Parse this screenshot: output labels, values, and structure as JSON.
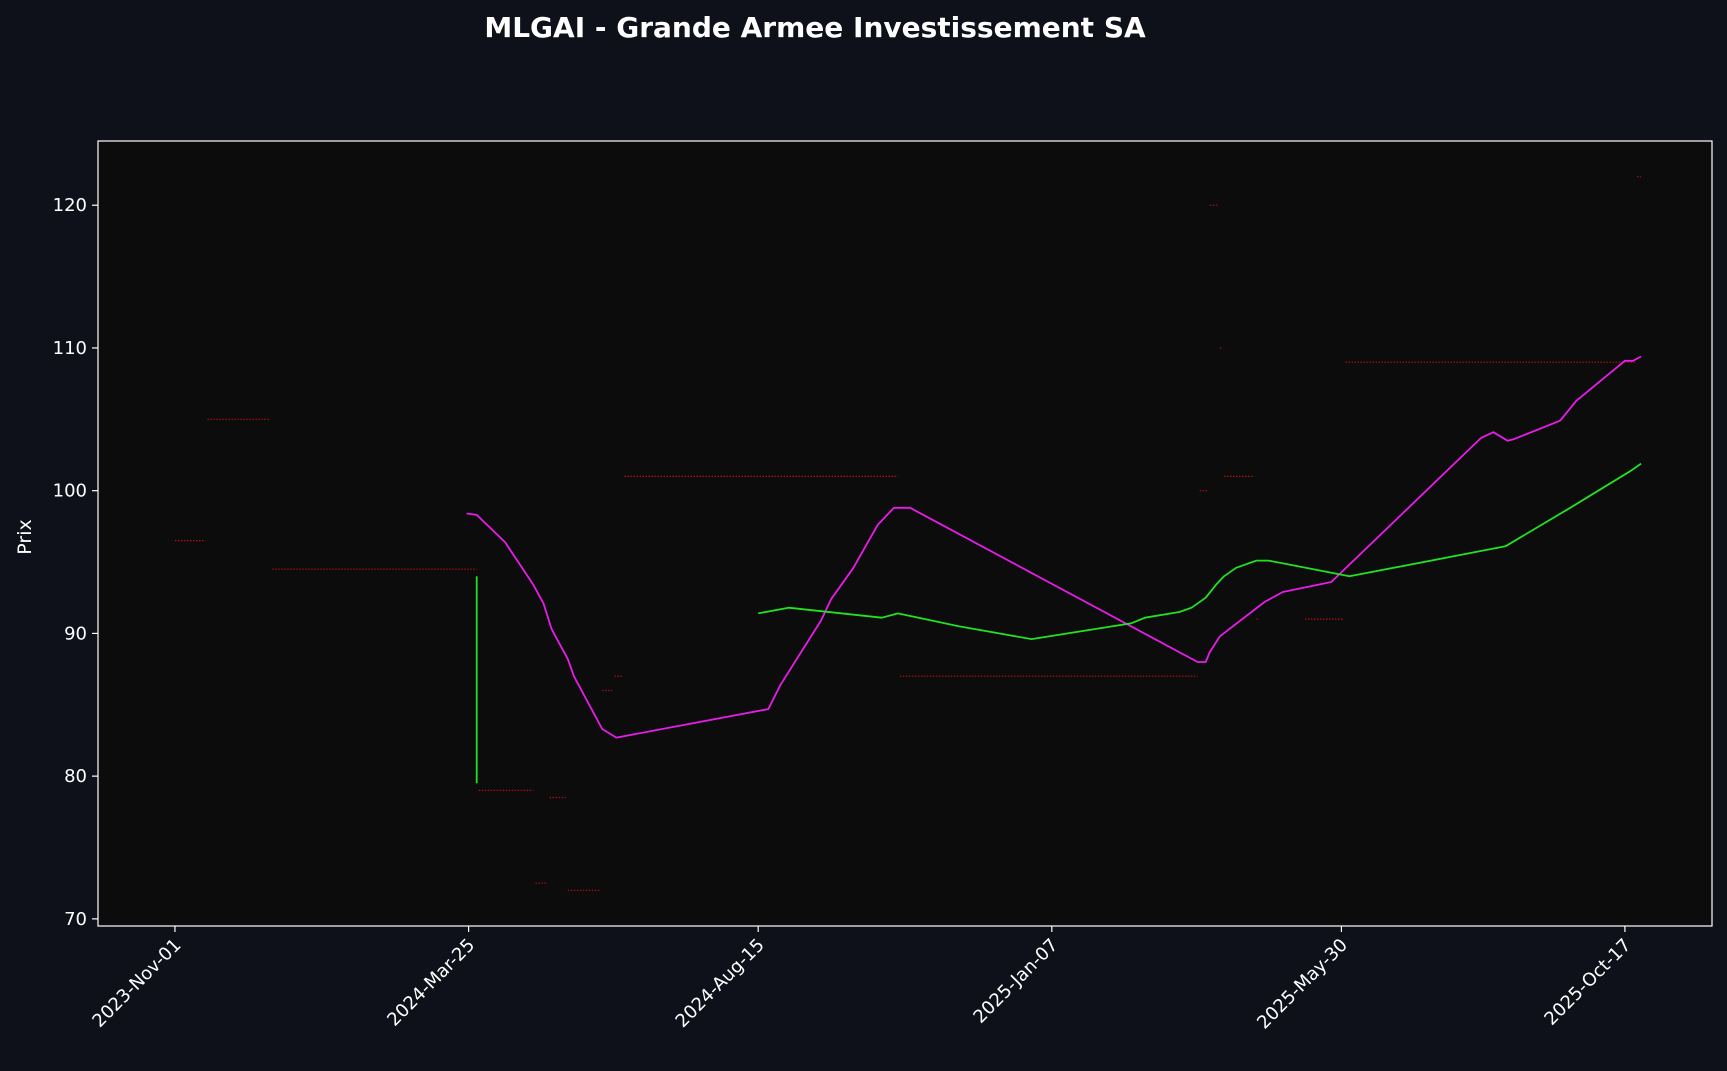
{
  "chart_data": {
    "type": "line",
    "title": "MLGAI - Grande Armee Investissement SA",
    "xlabel": "",
    "ylabel": "Prix",
    "x_ticks": [
      "2023-Nov-01",
      "2024-Mar-25",
      "2024-Aug-15",
      "2025-Jan-07",
      "2025-May-30",
      "2025-Oct-17"
    ],
    "y_ticks": [
      70,
      80,
      90,
      100,
      110,
      120
    ],
    "xlim": [
      "2023-Sep-24",
      "2025-Nov-29"
    ],
    "ylim": [
      69.5,
      124.5
    ],
    "grid": false,
    "legend": "none",
    "colors": {
      "background": "#0e111a",
      "plot_background": "#0c0c0c",
      "text": "#ffffff",
      "price_steps": "#b01010",
      "magenta_series": "#e81ce8",
      "green_series": "#22e022"
    },
    "series": [
      {
        "style": "step",
        "color": "#b01010",
        "points": [
          [
            "2023-Nov-01",
            96.5
          ],
          [
            "2023-Nov-16",
            96.5
          ],
          [
            "2023-Nov-17",
            105
          ],
          [
            "2023-Dec-18",
            105
          ],
          [
            "2023-Dec-19",
            94.5
          ],
          [
            "2024-Mar-29",
            94.5
          ],
          [
            "2024-Mar-30",
            79
          ],
          [
            "2024-Apr-26",
            79
          ],
          [
            "2024-Apr-27",
            72.5
          ],
          [
            "2024-May-03",
            72.5
          ],
          [
            "2024-May-04",
            78.5
          ],
          [
            "2024-May-12",
            78.5
          ],
          [
            "2024-May-13",
            72
          ],
          [
            "2024-May-29",
            72
          ],
          [
            "2024-May-30",
            86
          ],
          [
            "2024-Jun-04",
            86
          ],
          [
            "2024-Jun-05",
            87
          ],
          [
            "2024-Jun-09",
            87
          ],
          [
            "2024-Jun-10",
            101
          ],
          [
            "2024-Oct-23",
            101
          ],
          [
            "2024-Oct-24",
            87
          ],
          [
            "2025-Mar-20",
            87
          ],
          [
            "2025-Mar-21",
            100
          ],
          [
            "2025-Mar-25",
            100
          ],
          [
            "2025-Mar-26",
            120
          ],
          [
            "2025-Mar-30",
            120
          ],
          [
            "2025-Mar-31",
            110
          ],
          [
            "2025-Apr-01",
            110
          ],
          [
            "2025-Apr-02",
            101
          ],
          [
            "2025-Apr-17",
            101
          ],
          [
            "2025-Apr-18",
            91
          ],
          [
            "2025-Apr-19",
            91
          ],
          [
            "2025-May-12",
            91
          ],
          [
            "2025-May-31",
            91
          ],
          [
            "2025-Jun-01",
            109
          ],
          [
            "2025-Oct-22",
            109
          ],
          [
            "2025-Oct-23",
            122
          ],
          [
            "2025-Oct-25",
            122
          ]
        ]
      },
      {
        "style": "line",
        "color": "#e81ce8",
        "points": [
          [
            "2024-Mar-24",
            98.4
          ],
          [
            "2024-Mar-29",
            98.3
          ],
          [
            "2024-Apr-12",
            96.4
          ],
          [
            "2024-Apr-26",
            93.4
          ],
          [
            "2024-May-01",
            92.1
          ],
          [
            "2024-May-05",
            90.3
          ],
          [
            "2024-May-13",
            88.2
          ],
          [
            "2024-May-16",
            87
          ],
          [
            "2024-May-30",
            83.3
          ],
          [
            "2024-Jun-06",
            82.7
          ],
          [
            "2024-Aug-20",
            84.7
          ],
          [
            "2024-Aug-26",
            86.4
          ],
          [
            "2024-Sep-15",
            90.9
          ],
          [
            "2024-Sep-20",
            92.4
          ],
          [
            "2024-Oct-01",
            94.6
          ],
          [
            "2024-Oct-09",
            96.6
          ],
          [
            "2024-Oct-13",
            97.6
          ],
          [
            "2024-Oct-21",
            98.8
          ],
          [
            "2024-Oct-29",
            98.8
          ],
          [
            "2025-Mar-20",
            88
          ],
          [
            "2025-Mar-24",
            88
          ],
          [
            "2025-Mar-26",
            88.7
          ],
          [
            "2025-Mar-31",
            89.8
          ],
          [
            "2025-Apr-22",
            92.2
          ],
          [
            "2025-May-01",
            92.9
          ],
          [
            "2025-May-25",
            93.6
          ],
          [
            "2025-Aug-07",
            103.7
          ],
          [
            "2025-Aug-13",
            104.1
          ],
          [
            "2025-Aug-20",
            103.5
          ],
          [
            "2025-Aug-23",
            103.6
          ],
          [
            "2025-Sep-15",
            104.9
          ],
          [
            "2025-Sep-23",
            106.3
          ],
          [
            "2025-Oct-17",
            109.1
          ],
          [
            "2025-Oct-21",
            109.1
          ],
          [
            "2025-Oct-25",
            109.4
          ]
        ]
      },
      {
        "style": "line",
        "color": "#22e022",
        "points": [
          [
            "2024-Aug-15",
            91.4
          ],
          [
            "2024-Aug-30",
            91.8
          ],
          [
            "2024-Oct-15",
            91.1
          ],
          [
            "2024-Oct-23",
            91.4
          ],
          [
            "2024-Nov-22",
            90.5
          ],
          [
            "2024-Dec-28",
            89.6
          ],
          [
            "2025-Feb-15",
            90.7
          ],
          [
            "2025-Feb-22",
            91.1
          ],
          [
            "2025-Mar-11",
            91.5
          ],
          [
            "2025-Mar-17",
            91.8
          ],
          [
            "2025-Mar-24",
            92.5
          ],
          [
            "2025-Mar-29",
            93.4
          ],
          [
            "2025-Apr-02",
            94
          ],
          [
            "2025-Apr-08",
            94.6
          ],
          [
            "2025-Apr-18",
            95.1
          ],
          [
            "2025-Apr-24",
            95.1
          ],
          [
            "2025-May-05",
            94.8
          ],
          [
            "2025-Jun-03",
            94
          ],
          [
            "2025-Aug-19",
            96.1
          ],
          [
            "2025-Sep-20",
            98.8
          ],
          [
            "2025-Oct-20",
            101.4
          ],
          [
            "2025-Oct-25",
            101.9
          ]
        ]
      },
      {
        "style": "segment",
        "color": "#22e022",
        "points": [
          [
            "2024-Mar-29",
            94
          ],
          [
            "2024-Mar-29",
            79.5
          ]
        ]
      }
    ]
  }
}
